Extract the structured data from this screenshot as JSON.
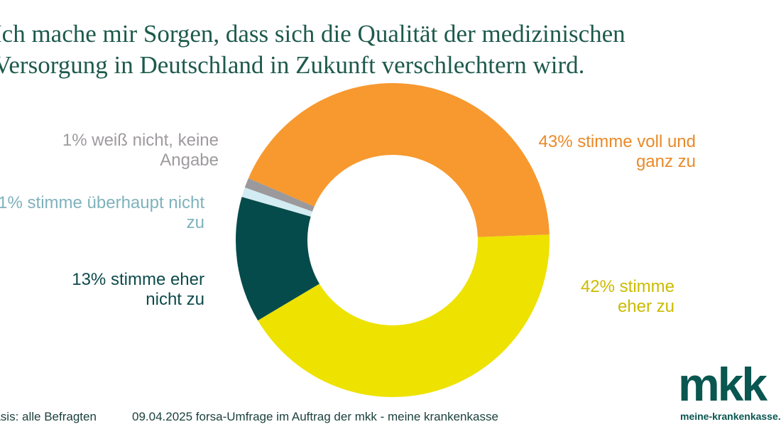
{
  "chart_data": {
    "type": "pie",
    "title": "Ich mache mir Sorgen, dass sich die Qualität der medizinischen Versorgung in Deutschland in Zukunft verschlechtern wird.",
    "categories": [
      "stimme voll und ganz zu",
      "stimme eher zu",
      "stimme eher nicht zu",
      "stimme überhaupt nicht zu",
      "weiß nicht, keine Angabe"
    ],
    "values": [
      43,
      42,
      13,
      1,
      1
    ],
    "value_labels": [
      "43%",
      "42%",
      "13%",
      "1%",
      "1%"
    ],
    "colors": [
      "#f7992f",
      "#eee200",
      "#064b4b",
      "#d3ebf2",
      "#9b999b"
    ],
    "donut": true,
    "basis": "Basis: alle Befragten",
    "source": "09.04.2025 forsa-Umfrage im Auftrag der mkk - meine krankenkasse",
    "logo": "mkk",
    "logo_url": "meine-krankenkasse.de"
  }
}
